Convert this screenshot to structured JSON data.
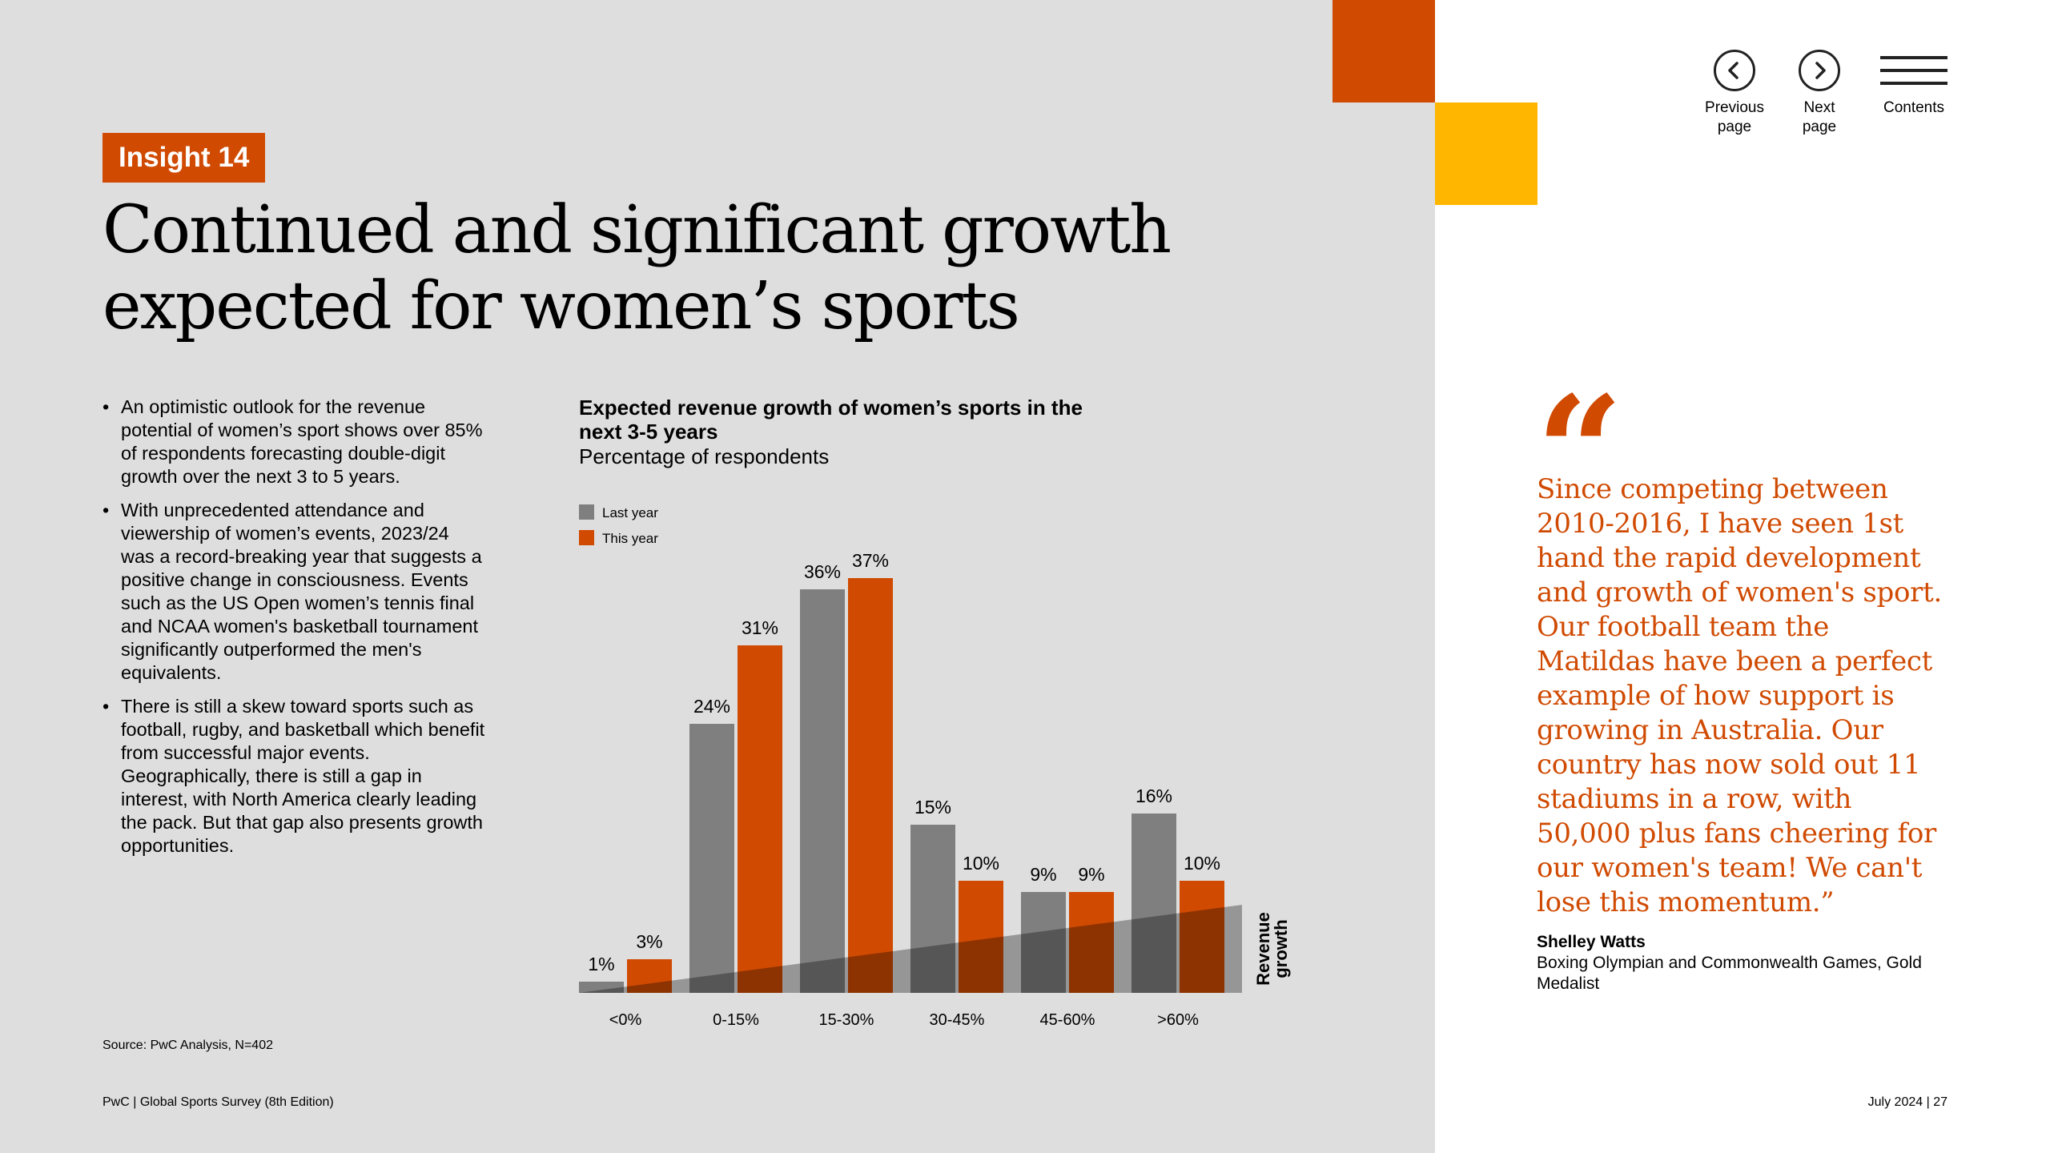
{
  "header": {
    "insight_tag": "Insight 14",
    "title_line1": "Continued and significant growth",
    "title_line2": "expected for women’s sports"
  },
  "nav": {
    "previous_label": "Previous page",
    "next_label": "Next page",
    "contents_label": "Contents"
  },
  "bullets": [
    "An optimistic outlook for the revenue potential of women’s sport shows over 85% of respondents forecasting double-digit growth over the next 3 to 5 years.",
    "With unprecedented attendance and viewership of women’s events, 2023/24 was a record-breaking year that suggests a positive change in consciousness. Events such as the US Open women’s tennis final and NCAA women's basketball tournament significantly outperformed the men's equivalents.",
    "There is still a skew toward sports such as football, rugby, and basketball which benefit from successful major events. Geographically, there is still a gap in interest, with North America clearly leading the pack. But that gap also presents growth opportunities."
  ],
  "chart_data": {
    "type": "bar",
    "title": "Expected revenue growth of women’s sports in the next 3-5 years",
    "subtitle": "Percentage of respondents",
    "categories": [
      "<0%",
      "0-15%",
      "15-30%",
      "30-45%",
      "45-60%",
      ">60%"
    ],
    "series": [
      {
        "name": "Last year",
        "color": "#7f7f7f",
        "values": [
          1,
          24,
          36,
          15,
          9,
          16
        ]
      },
      {
        "name": "This year",
        "color": "#d04a02",
        "values": [
          3,
          31,
          37,
          10,
          9,
          10
        ]
      }
    ],
    "axis_label": "Revenue growth",
    "ylim": [
      0,
      40
    ],
    "legend_position": "top-left"
  },
  "source": "Source: PwC Analysis, N=402",
  "footer": {
    "left": "PwC | Global Sports Survey (8th Edition)",
    "right": "July 2024 | 27"
  },
  "quote": {
    "mark": "“",
    "text": "Since competing between 2010-2016, I have seen 1st hand the rapid development and growth of women's sport. Our football team the Matildas have been a perfect example of how support is growing in Australia. Our country has now sold out 11 stadiums in a row, with 50,000 plus fans cheering for our women's team! We can't lose this momentum.”",
    "author": "Shelley Watts",
    "role": "Boxing Olympian and Commonwealth Games, Gold Medalist"
  },
  "colors": {
    "accent_orange": "#d04a02",
    "accent_yellow": "#ffb600",
    "panel_grey": "#dedede"
  }
}
